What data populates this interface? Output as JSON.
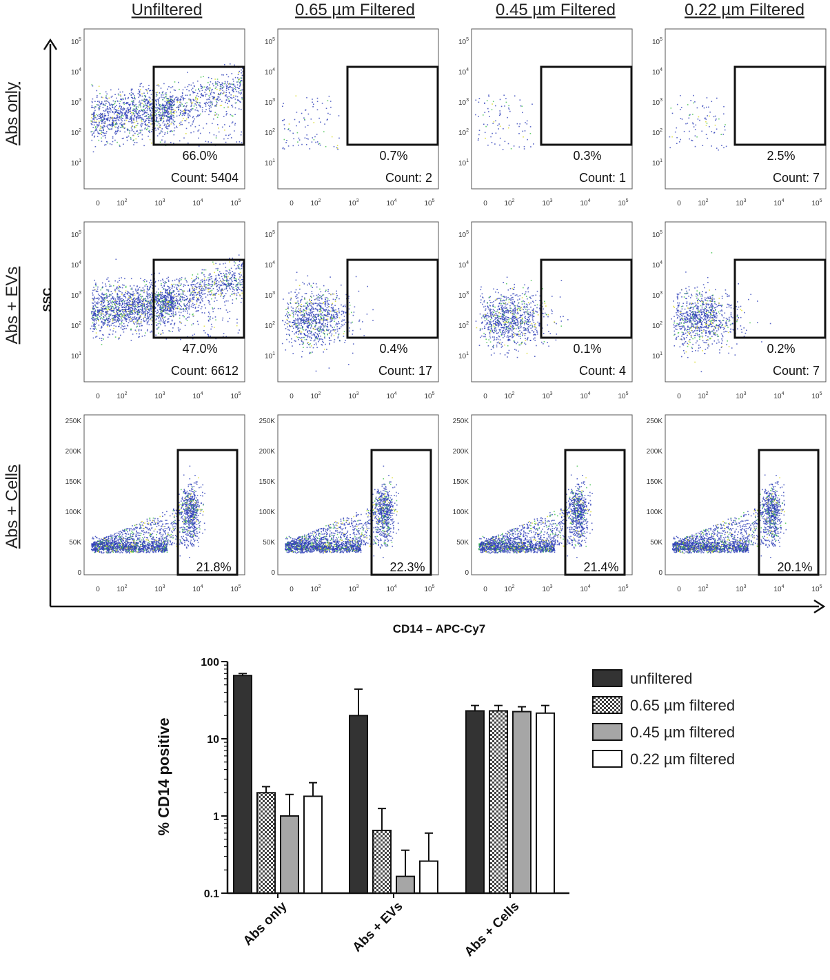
{
  "flow": {
    "column_titles": [
      "Unfiltered",
      "0.65 µm Filtered",
      "0.45 µm Filtered",
      "0.22 µm Filtered"
    ],
    "row_labels": [
      "Abs only",
      "Abs + EVs",
      "Abs + Cells"
    ],
    "y_axis_label": "SSC",
    "x_axis_label": "CD14 – APC-Cy7",
    "log_ticks_x": [
      "0",
      "10^2",
      "10^3",
      "10^4",
      "10^5"
    ],
    "log_ticks_y": [
      "10^5",
      "10^4",
      "10^3",
      "10^2",
      "10^1"
    ],
    "linear_ticks_y": [
      "250K",
      "200K",
      "150K",
      "100K",
      "50K",
      "0"
    ],
    "panels": [
      [
        {
          "percent": "66.0%",
          "count": "Count: 5404"
        },
        {
          "percent": "0.7%",
          "count": "Count: 2"
        },
        {
          "percent": "0.3%",
          "count": "Count: 1"
        },
        {
          "percent": "2.5%",
          "count": "Count: 7"
        }
      ],
      [
        {
          "percent": "47.0%",
          "count": "Count: 6612"
        },
        {
          "percent": "0.4%",
          "count": "Count: 17"
        },
        {
          "percent": "0.1%",
          "count": "Count: 4"
        },
        {
          "percent": "0.2%",
          "count": "Count: 7"
        }
      ],
      [
        {
          "percent": "21.8%"
        },
        {
          "percent": "22.3%"
        },
        {
          "percent": "21.4%"
        },
        {
          "percent": "20.1%"
        }
      ]
    ]
  },
  "chart_data": {
    "type": "bar",
    "ylabel": "% CD14 positive",
    "xlabel": "",
    "yscale": "log",
    "ylim": [
      0.1,
      100
    ],
    "yticks": [
      "100",
      "10",
      "1",
      "0.1"
    ],
    "categories": [
      "Abs only",
      "Abs + EVs",
      "Abs + Cells"
    ],
    "legend_position": "top-right",
    "series": [
      {
        "name": "unfiltered",
        "pattern": "solid",
        "color": "#333333",
        "values": [
          66,
          20,
          23
        ],
        "error": [
          70,
          44,
          27
        ]
      },
      {
        "name": "0.65 µm filtered",
        "pattern": "checker",
        "color": "#555555",
        "values": [
          2.0,
          0.65,
          23
        ],
        "error": [
          2.4,
          1.25,
          27
        ]
      },
      {
        "name": "0.45 µm filtered",
        "pattern": "gray",
        "color": "#a6a6a6",
        "values": [
          1.0,
          0.165,
          22.5
        ],
        "error": [
          1.9,
          0.36,
          26
        ]
      },
      {
        "name": "0.22 µm filtered",
        "pattern": "white",
        "color": "#ffffff",
        "values": [
          1.8,
          0.26,
          21.5
        ],
        "error": [
          2.7,
          0.6,
          27
        ]
      }
    ]
  }
}
